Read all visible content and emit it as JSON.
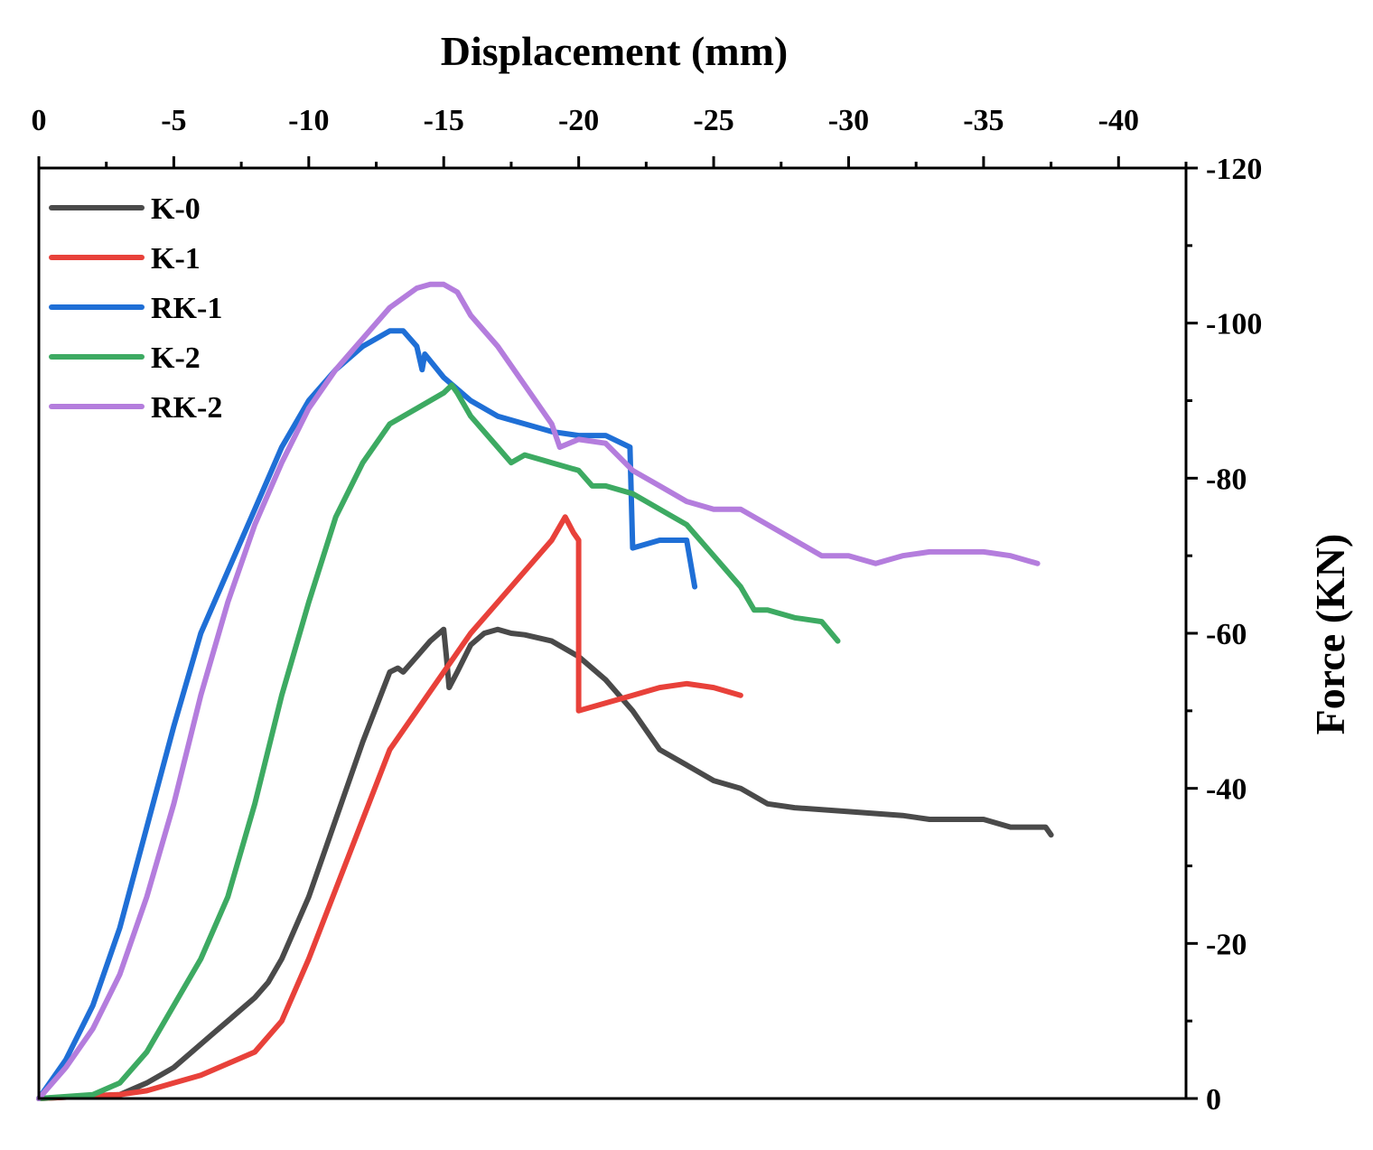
{
  "chart_data": {
    "type": "line",
    "title": "",
    "xlabel": "Displacement (mm)",
    "ylabel": "Force (KN)",
    "xlim": [
      0,
      -42.5
    ],
    "ylim": [
      0,
      -120
    ],
    "x_ticks": [
      0,
      -5,
      -10,
      -15,
      -20,
      -25,
      -30,
      -35,
      -40
    ],
    "y_ticks": [
      0,
      -20,
      -40,
      -60,
      -80,
      -100,
      -120
    ],
    "x_axis_position": "top",
    "y_axis_position": "right",
    "grid": false,
    "legend_position": "top-left",
    "series": [
      {
        "name": "K-0",
        "color": "#4a4a4a",
        "x": [
          0,
          -3,
          -4,
          -5,
          -6,
          -6.5,
          -7,
          -8,
          -8.5,
          -9,
          -10,
          -11,
          -12,
          -13,
          -13.3,
          -13.5,
          -14,
          -14.5,
          -15,
          -15.1,
          -15.2,
          -15.5,
          -16,
          -16.5,
          -17,
          -17.5,
          -18,
          -19,
          -20,
          -21,
          -22,
          -23,
          -24,
          -25,
          -26,
          -27,
          -28,
          -30,
          -32,
          -33,
          -35,
          -36,
          -37.3,
          -37.5
        ],
        "y": [
          0,
          -0.5,
          -2,
          -4,
          -7,
          -8.5,
          -10,
          -13,
          -15,
          -18,
          -26,
          -36,
          -46,
          -55,
          -55.5,
          -55,
          -57,
          -59,
          -60.5,
          -57,
          -53,
          -55,
          -58.5,
          -60,
          -60.5,
          -60,
          -59.8,
          -59,
          -57,
          -54,
          -50,
          -45,
          -43,
          -41,
          -40,
          -38,
          -37.5,
          -37,
          -36.5,
          -36,
          -36,
          -35,
          -35,
          -34
        ]
      },
      {
        "name": "K-1",
        "color": "#e8413a",
        "x": [
          0,
          -3,
          -4,
          -5,
          -6,
          -7,
          -8,
          -9,
          -10,
          -11,
          -12,
          -13,
          -14,
          -15,
          -16,
          -17,
          -18,
          -19,
          -19.5,
          -19.8,
          -20,
          -20,
          -21,
          -22,
          -23,
          -24,
          -25,
          -26
        ],
        "y": [
          0,
          -0.5,
          -1,
          -2,
          -3,
          -4.5,
          -6,
          -10,
          -18,
          -27,
          -36,
          -45,
          -50,
          -55,
          -60,
          -64,
          -68,
          -72,
          -75,
          -73,
          -72,
          -50,
          -51,
          -52,
          -53,
          -53.5,
          -53,
          -52
        ]
      },
      {
        "name": "RK-1",
        "color": "#1f6fd6",
        "x": [
          0,
          -1,
          -2,
          -3,
          -4,
          -5,
          -6,
          -7,
          -8,
          -9,
          -10,
          -11,
          -12,
          -13,
          -13.5,
          -14,
          -14.2,
          -14.3,
          -15,
          -16,
          -17,
          -18,
          -19,
          -20,
          -21,
          -21.9,
          -22,
          -23,
          -24,
          -24.3
        ],
        "y": [
          0,
          -5,
          -12,
          -22,
          -35,
          -48,
          -60,
          -68,
          -76,
          -84,
          -90,
          -94,
          -97,
          -99,
          -99,
          -97,
          -94,
          -96,
          -93,
          -90,
          -88,
          -87,
          -86,
          -85.5,
          -85.5,
          -84,
          -71,
          -72,
          -72,
          -66
        ]
      },
      {
        "name": "K-2",
        "color": "#3daa62",
        "x": [
          0,
          -2,
          -3,
          -4,
          -5,
          -6,
          -7,
          -8,
          -9,
          -10,
          -11,
          -12,
          -13,
          -14,
          -14.5,
          -15,
          -15.3,
          -15.5,
          -16,
          -17,
          -17.5,
          -18,
          -19,
          -20,
          -20.5,
          -21,
          -22,
          -23,
          -24,
          -25,
          -26,
          -26.5,
          -27,
          -28,
          -29,
          -29.6
        ],
        "y": [
          0,
          -0.5,
          -2,
          -6,
          -12,
          -18,
          -26,
          -38,
          -52,
          -64,
          -75,
          -82,
          -87,
          -89,
          -90,
          -91,
          -92,
          -91,
          -88,
          -84,
          -82,
          -83,
          -82,
          -81,
          -79,
          -79,
          -78,
          -76,
          -74,
          -70,
          -66,
          -63,
          -63,
          -62,
          -61.5,
          -59
        ]
      },
      {
        "name": "RK-2",
        "color": "#b47ddd",
        "x": [
          0,
          -1,
          -2,
          -3,
          -4,
          -5,
          -6,
          -7,
          -8,
          -9,
          -10,
          -11,
          -12,
          -13,
          -14,
          -14.5,
          -15,
          -15.5,
          -16,
          -17,
          -18,
          -19,
          -19.3,
          -20,
          -21,
          -22,
          -23,
          -24,
          -25,
          -26,
          -27,
          -28,
          -29,
          -30,
          -31,
          -32,
          -33,
          -34,
          -35,
          -36,
          -37
        ],
        "y": [
          0,
          -4,
          -9,
          -16,
          -26,
          -38,
          -52,
          -64,
          -74,
          -82,
          -89,
          -94,
          -98,
          -102,
          -104.5,
          -105,
          -105,
          -104,
          -101,
          -97,
          -92,
          -87,
          -84,
          -85,
          -84.5,
          -81,
          -79,
          -77,
          -76,
          -76,
          -74,
          -72,
          -70,
          -70,
          -69,
          -70,
          -70.5,
          -70.5,
          -70.5,
          -70,
          -69
        ]
      }
    ]
  }
}
